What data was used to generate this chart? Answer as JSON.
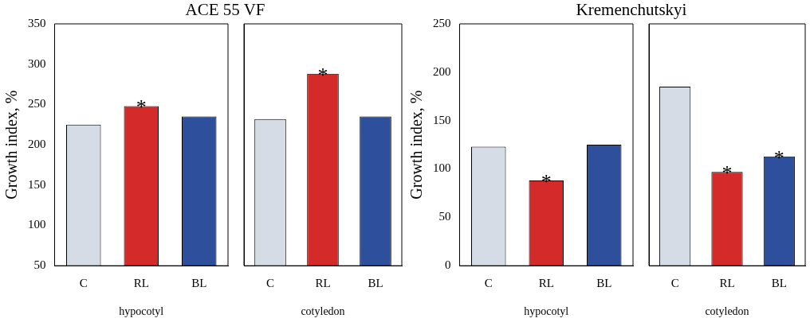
{
  "chart_data": [
    {
      "type": "bar",
      "title": "ACE 55 VF",
      "ylabel": "Growth index, %",
      "xlabel": "hypocotyl",
      "categories": [
        "C",
        "RL",
        "BL"
      ],
      "values": [
        225,
        248,
        235
      ],
      "colors": [
        "#d6dce5",
        "#d42a2a",
        "#2e4f9c"
      ],
      "ylim": [
        50,
        350
      ],
      "yticks": [
        50,
        100,
        150,
        200,
        250,
        300,
        350
      ],
      "grid": false,
      "annotations": [
        {
          "text": "*",
          "x": "RL",
          "y": 248
        }
      ]
    },
    {
      "type": "bar",
      "xlabel": "cotyledon",
      "categories": [
        "C",
        "RL",
        "BL"
      ],
      "values": [
        232,
        288,
        235
      ],
      "colors": [
        "#d6dce5",
        "#d42a2a",
        "#2e4f9c"
      ],
      "ylim": [
        50,
        350
      ],
      "grid": false,
      "tick_labels": "x",
      "annotations": [
        {
          "text": "*",
          "x": "RL",
          "y": 288
        }
      ]
    },
    {
      "type": "bar",
      "title": "Kremenchutskyi",
      "ylabel": "Growth index, %",
      "xlabel": "hypocotyl",
      "categories": [
        "C",
        "RL",
        "BL"
      ],
      "values": [
        123,
        88,
        125
      ],
      "colors": [
        "#d6dce5",
        "#d42a2a",
        "#2e4f9c"
      ],
      "ylim": [
        0,
        250
      ],
      "yticks": [
        0,
        50,
        100,
        150,
        200,
        250
      ],
      "grid": false,
      "annotations": [
        {
          "text": "*",
          "x": "RL",
          "y": 88
        }
      ]
    },
    {
      "type": "bar",
      "xlabel": "cotyledon",
      "categories": [
        "C",
        "RL",
        "BL"
      ],
      "values": [
        185,
        97,
        113
      ],
      "colors": [
        "#d6dce5",
        "#d42a2a",
        "#2e4f9c"
      ],
      "ylim": [
        0,
        250
      ],
      "grid": false,
      "tick_labels": "x",
      "annotations": [
        {
          "text": "*",
          "x": "RL",
          "y": 97
        },
        {
          "text": "*",
          "x": "BL",
          "y": 113
        }
      ]
    }
  ]
}
